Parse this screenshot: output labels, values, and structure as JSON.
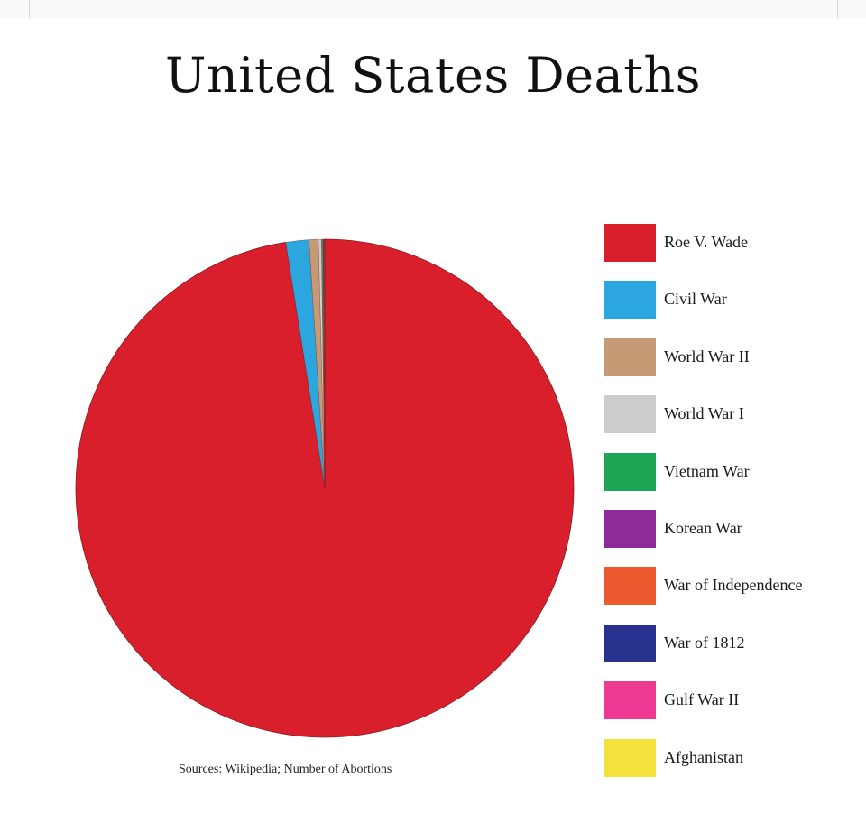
{
  "chart_data": {
    "type": "pie",
    "title": "United States Deaths",
    "source": "Sources: Wikipedia; Number of Abortions",
    "series": [
      {
        "name": "Roe V. Wade",
        "value": 97.6,
        "color": "#d91f2b"
      },
      {
        "name": "Civil War",
        "value": 1.5,
        "color": "#2ba6df"
      },
      {
        "name": "World War II",
        "value": 0.6,
        "color": "#c69a74"
      },
      {
        "name": "World War I",
        "value": 0.2,
        "color": "#cccccc"
      },
      {
        "name": "Vietnam War",
        "value": 0.1,
        "color": "#1ea655"
      },
      {
        "name": "Korean War",
        "value": 0.05,
        "color": "#8e2a9a"
      },
      {
        "name": "War of Independence",
        "value": 0.03,
        "color": "#ee5a2f"
      },
      {
        "name": "War of 1812",
        "value": 0.01,
        "color": "#27338f"
      },
      {
        "name": "Gulf War II",
        "value": 0.01,
        "color": "#ec3a93"
      },
      {
        "name": "Afghanistan",
        "value": 0.01,
        "color": "#f3e23c"
      }
    ],
    "legend_position": "right"
  }
}
